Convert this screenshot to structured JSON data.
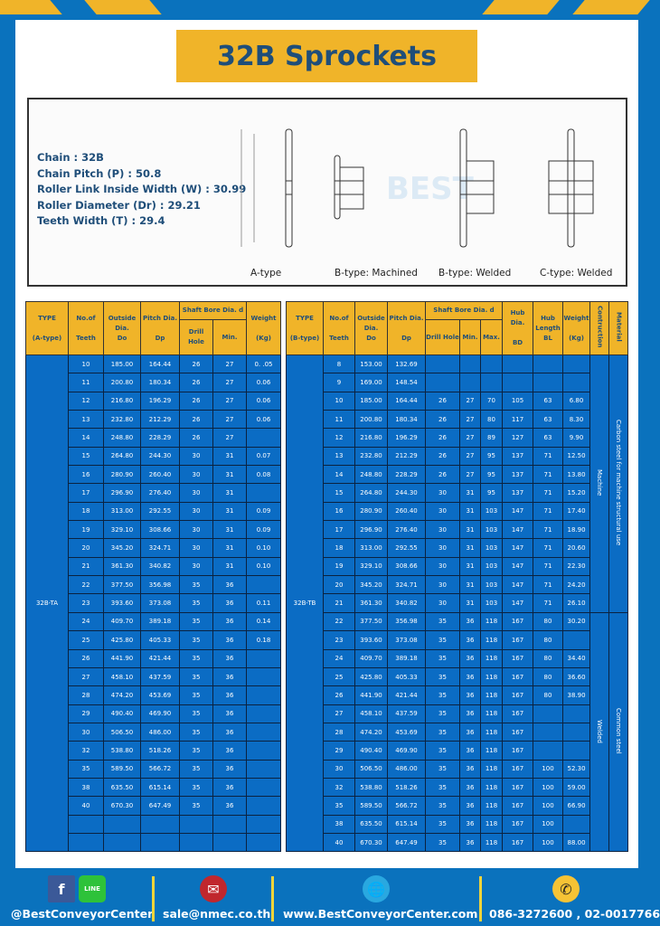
{
  "title": "32B Sprockets",
  "specs": [
    "Chain  : 32B",
    "Chain Pitch (P)  :  50.8",
    "Roller Link Inside Width (W)  :  30.99",
    "Roller Diameter (Dr)  : 29.21",
    "Teeth Width (T)  :  29.4"
  ],
  "diagram": {
    "captions": [
      "A-type",
      "B-type: Machined",
      "B-type: Welded",
      "C-type: Welded"
    ],
    "watermark": "BEST CONVEYOR CENTER"
  },
  "left_table": {
    "headers": {
      "type": "TYPE",
      "type2": "(A-type)",
      "teeth": "No.of",
      "teeth2": "Teeth",
      "do": "Outside",
      "do2": "Dia.",
      "do3": "Do",
      "dp": "Pitch Dia.",
      "dp2": "Dp",
      "bore": "Shaft Bore Dia. d",
      "drill": "Drill Hole",
      "min": "Min.",
      "weight": "Weight",
      "weight2": "(Kg)"
    },
    "type_value": "32B-TA",
    "rows": [
      [
        "10",
        "185.00",
        "164.44",
        "26",
        "27",
        "0. .05"
      ],
      [
        "11",
        "200.80",
        "180.34",
        "26",
        "27",
        "0.06"
      ],
      [
        "12",
        "216.80",
        "196.29",
        "26",
        "27",
        "0.06"
      ],
      [
        "13",
        "232.80",
        "212.29",
        "26",
        "27",
        "0.06"
      ],
      [
        "14",
        "248.80",
        "228.29",
        "26",
        "27",
        ""
      ],
      [
        "15",
        "264.80",
        "244.30",
        "30",
        "31",
        "0.07"
      ],
      [
        "16",
        "280.90",
        "260.40",
        "30",
        "31",
        "0.08"
      ],
      [
        "17",
        "296.90",
        "276.40",
        "30",
        "31",
        ""
      ],
      [
        "18",
        "313.00",
        "292.55",
        "30",
        "31",
        "0.09"
      ],
      [
        "19",
        "329.10",
        "308.66",
        "30",
        "31",
        "0.09"
      ],
      [
        "20",
        "345.20",
        "324.71",
        "30",
        "31",
        "0.10"
      ],
      [
        "21",
        "361.30",
        "340.82",
        "30",
        "31",
        "0.10"
      ],
      [
        "22",
        "377.50",
        "356.98",
        "35",
        "36",
        ""
      ],
      [
        "23",
        "393.60",
        "373.08",
        "35",
        "36",
        "0.11"
      ],
      [
        "24",
        "409.70",
        "389.18",
        "35",
        "36",
        "0.14"
      ],
      [
        "25",
        "425.80",
        "405.33",
        "35",
        "36",
        "0.18"
      ],
      [
        "26",
        "441.90",
        "421.44",
        "35",
        "36",
        ""
      ],
      [
        "27",
        "458.10",
        "437.59",
        "35",
        "36",
        ""
      ],
      [
        "28",
        "474.20",
        "453.69",
        "35",
        "36",
        ""
      ],
      [
        "29",
        "490.40",
        "469.90",
        "35",
        "36",
        ""
      ],
      [
        "30",
        "506.50",
        "486.00",
        "35",
        "36",
        ""
      ],
      [
        "32",
        "538.80",
        "518.26",
        "35",
        "36",
        ""
      ],
      [
        "35",
        "589.50",
        "566.72",
        "35",
        "36",
        ""
      ],
      [
        "38",
        "635.50",
        "615.14",
        "35",
        "36",
        ""
      ],
      [
        "40",
        "670.30",
        "647.49",
        "35",
        "36",
        ""
      ],
      [
        "",
        "",
        "",
        "",
        "",
        ""
      ],
      [
        "",
        "",
        "",
        "",
        "",
        ""
      ]
    ]
  },
  "right_table": {
    "headers": {
      "type": "TYPE",
      "type2": "(B-type)",
      "teeth": "No.of",
      "teeth2": "Teeth",
      "do": "Outside",
      "do2": "Dia.",
      "do3": "Do",
      "dp": "Pitch Dia.",
      "dp2": "Dp",
      "bore": "Shaft Bore Dia. d",
      "drill": "Drill Hole",
      "min": "Min.",
      "max": "Max.",
      "bd": "Hub Dia.",
      "bd2": "BD",
      "bl": "Hub",
      "bl2": "Length",
      "bl3": "BL",
      "weight": "Weight",
      "weight2": "(Kg)",
      "construction": "Contruction",
      "material": "Material"
    },
    "type_value": "32B-TB",
    "construction": [
      {
        "label": "Machine",
        "rows": 14
      },
      {
        "label": "Welded",
        "rows": 13
      }
    ],
    "material": [
      {
        "label": "Carbon steel for machine structural use",
        "rows": 14
      },
      {
        "label": "Common steel",
        "rows": 13
      }
    ],
    "rows": [
      [
        "8",
        "153.00",
        "132.69",
        "",
        "",
        "",
        "",
        "",
        ""
      ],
      [
        "9",
        "169.00",
        "148.54",
        "",
        "",
        "",
        "",
        "",
        ""
      ],
      [
        "10",
        "185.00",
        "164.44",
        "26",
        "27",
        "70",
        "105",
        "63",
        "6.80"
      ],
      [
        "11",
        "200.80",
        "180.34",
        "26",
        "27",
        "80",
        "117",
        "63",
        "8.30"
      ],
      [
        "12",
        "216.80",
        "196.29",
        "26",
        "27",
        "89",
        "127",
        "63",
        "9.90"
      ],
      [
        "13",
        "232.80",
        "212.29",
        "26",
        "27",
        "95",
        "137",
        "71",
        "12.50"
      ],
      [
        "14",
        "248.80",
        "228.29",
        "26",
        "27",
        "95",
        "137",
        "71",
        "13.80"
      ],
      [
        "15",
        "264.80",
        "244.30",
        "30",
        "31",
        "95",
        "137",
        "71",
        "15.20"
      ],
      [
        "16",
        "280.90",
        "260.40",
        "30",
        "31",
        "103",
        "147",
        "71",
        "17.40"
      ],
      [
        "17",
        "296.90",
        "276.40",
        "30",
        "31",
        "103",
        "147",
        "71",
        "18.90"
      ],
      [
        "18",
        "313.00",
        "292.55",
        "30",
        "31",
        "103",
        "147",
        "71",
        "20.60"
      ],
      [
        "19",
        "329.10",
        "308.66",
        "30",
        "31",
        "103",
        "147",
        "71",
        "22.30"
      ],
      [
        "20",
        "345.20",
        "324.71",
        "30",
        "31",
        "103",
        "147",
        "71",
        "24.20"
      ],
      [
        "21",
        "361.30",
        "340.82",
        "30",
        "31",
        "103",
        "147",
        "71",
        "26.10"
      ],
      [
        "22",
        "377.50",
        "356.98",
        "35",
        "36",
        "118",
        "167",
        "80",
        "30.20"
      ],
      [
        "23",
        "393.60",
        "373.08",
        "35",
        "36",
        "118",
        "167",
        "80",
        ""
      ],
      [
        "24",
        "409.70",
        "389.18",
        "35",
        "36",
        "118",
        "167",
        "80",
        "34.40"
      ],
      [
        "25",
        "425.80",
        "405.33",
        "35",
        "36",
        "118",
        "167",
        "80",
        "36.60"
      ],
      [
        "26",
        "441.90",
        "421.44",
        "35",
        "36",
        "118",
        "167",
        "80",
        "38.90"
      ],
      [
        "27",
        "458.10",
        "437.59",
        "35",
        "36",
        "118",
        "167",
        "",
        ""
      ],
      [
        "28",
        "474.20",
        "453.69",
        "35",
        "36",
        "118",
        "167",
        "",
        ""
      ],
      [
        "29",
        "490.40",
        "469.90",
        "35",
        "36",
        "118",
        "167",
        "",
        ""
      ],
      [
        "30",
        "506.50",
        "486.00",
        "35",
        "36",
        "118",
        "167",
        "100",
        "52.30"
      ],
      [
        "32",
        "538.80",
        "518.26",
        "35",
        "36",
        "118",
        "167",
        "100",
        "59.00"
      ],
      [
        "35",
        "589.50",
        "566.72",
        "35",
        "36",
        "118",
        "167",
        "100",
        "66.90"
      ],
      [
        "38",
        "635.50",
        "615.14",
        "35",
        "36",
        "118",
        "167",
        "100",
        ""
      ],
      [
        "40",
        "670.30",
        "647.49",
        "35",
        "36",
        "118",
        "167",
        "100",
        "88.00"
      ]
    ]
  },
  "footer": {
    "social": "@BestConveyorCenter",
    "line_badge": "LINE",
    "email": "sale@nmec.co.th",
    "website": "www.BestConveyorCenter.com",
    "phone": "086-3272600 , 02-0017766"
  },
  "colors": {
    "blue": "#0a72bd",
    "yellow": "#f0b429",
    "cell": "#0b6cc4",
    "title_text": "#1f4e79"
  }
}
